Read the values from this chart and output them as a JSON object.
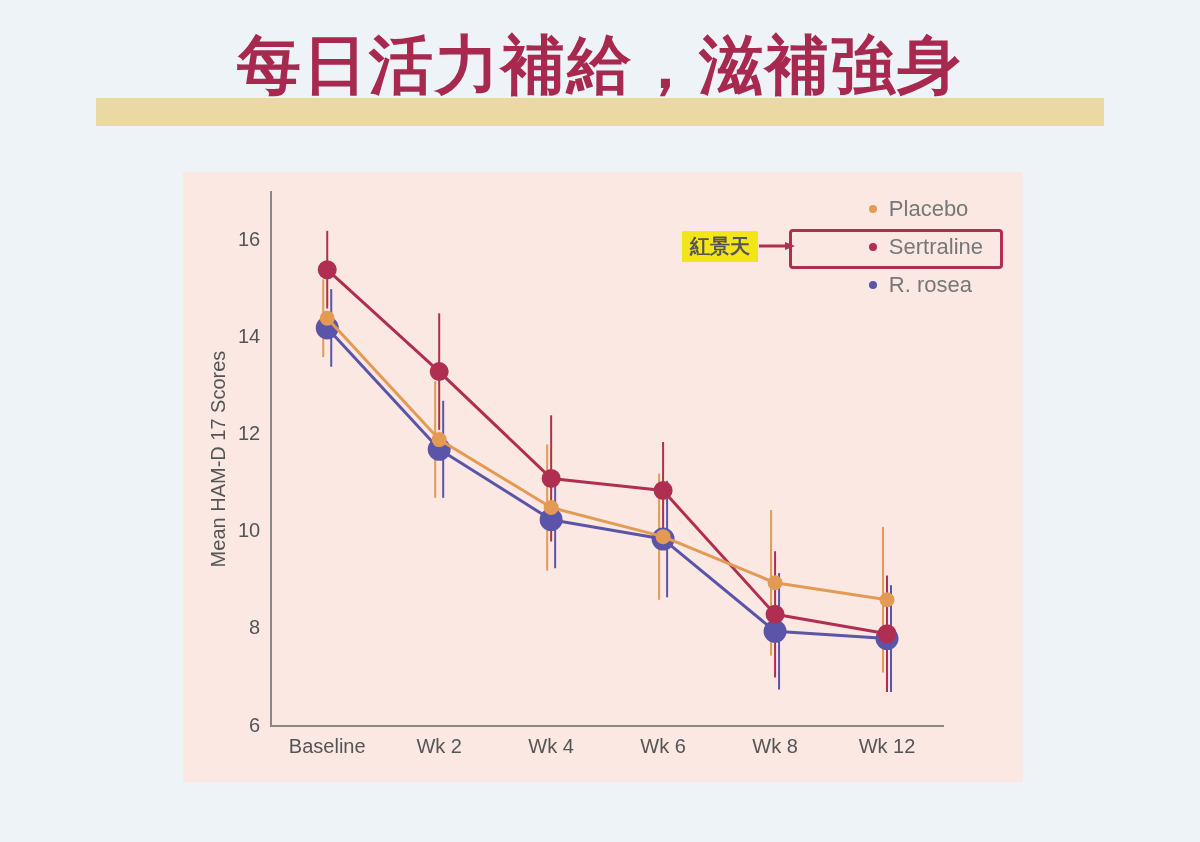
{
  "chart_data": {
    "type": "line",
    "title": "每日活力補給，滋補強身",
    "ylabel": "Mean HAM-D 17 Scores",
    "categories": [
      "Baseline",
      "Wk 2",
      "Wk 4",
      "Wk 6",
      "Wk 8",
      "Wk 12"
    ],
    "series": [
      {
        "name": "Placebo",
        "color": "#e39a55",
        "values": [
          14.4,
          11.9,
          10.5,
          9.9,
          8.95,
          8.6
        ],
        "errors": [
          0.8,
          1.2,
          1.3,
          1.3,
          1.5,
          1.5
        ]
      },
      {
        "name": "Sertraline",
        "color": "#b02e52",
        "values": [
          15.4,
          13.3,
          11.1,
          10.85,
          8.3,
          7.9
        ],
        "errors": [
          0.8,
          1.2,
          1.3,
          1.0,
          1.3,
          1.2
        ]
      },
      {
        "name": "R. rosea",
        "color": "#5a55a8",
        "values": [
          14.2,
          11.7,
          10.25,
          9.85,
          7.95,
          7.8
        ],
        "errors": [
          0.8,
          1.0,
          1.0,
          1.2,
          1.2,
          1.1
        ]
      }
    ],
    "ylim": [
      6,
      17
    ],
    "yticks": [
      6,
      8,
      10,
      12,
      14,
      16
    ],
    "grid": false,
    "legend": "top right",
    "marker": "circle",
    "line_style": "solid",
    "annotations": [
      "紅景天"
    ]
  }
}
